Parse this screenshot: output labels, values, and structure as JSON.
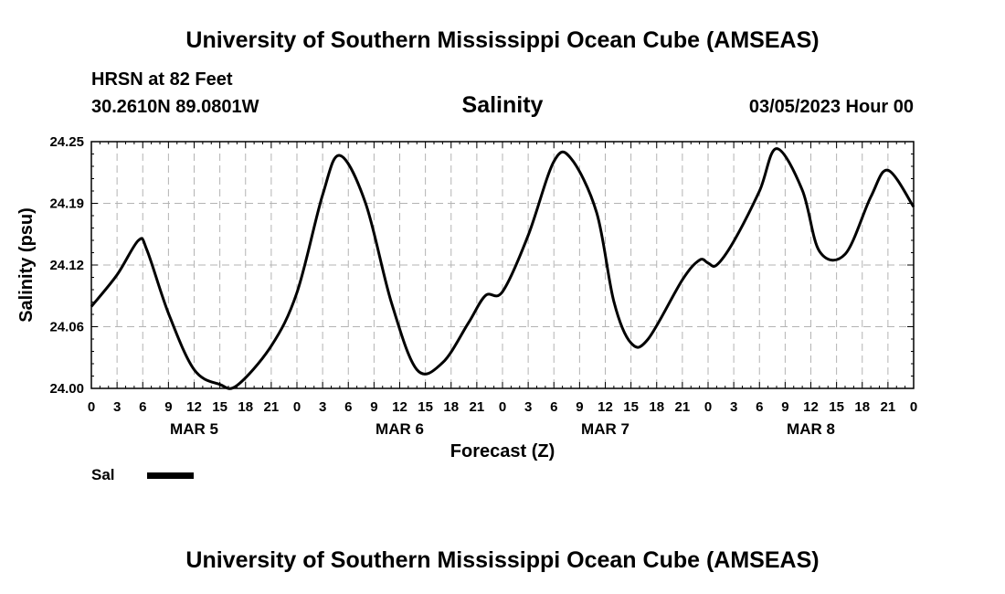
{
  "header": {
    "title": "University of Southern Mississippi Ocean Cube (AMSEAS)",
    "station": "HRSN at 82 Feet",
    "coords": "30.2610N  89.0801W",
    "subtitle": "Salinity",
    "datetime": "03/05/2023 Hour 00"
  },
  "footer": {
    "title": "University of Southern Mississippi Ocean Cube (AMSEAS)"
  },
  "chart_data": {
    "type": "line",
    "title": "Salinity",
    "xlabel": "Forecast (Z)",
    "ylabel": "Salinity (psu)",
    "xlim": [
      0,
      96
    ],
    "ylim": [
      24.0,
      24.25
    ],
    "grid": true,
    "yticks": [
      {
        "value": 24.0,
        "label": "24.00"
      },
      {
        "value": 24.0625,
        "label": "24.06"
      },
      {
        "value": 24.125,
        "label": "24.12"
      },
      {
        "value": 24.1875,
        "label": "24.19"
      },
      {
        "value": 24.25,
        "label": "24.25"
      }
    ],
    "xticks": [
      {
        "hour": 0,
        "label": "0"
      },
      {
        "hour": 3,
        "label": "3"
      },
      {
        "hour": 6,
        "label": "6"
      },
      {
        "hour": 9,
        "label": "9"
      },
      {
        "hour": 12,
        "label": "12"
      },
      {
        "hour": 15,
        "label": "15"
      },
      {
        "hour": 18,
        "label": "18"
      },
      {
        "hour": 21,
        "label": "21"
      },
      {
        "hour": 24,
        "label": "0"
      },
      {
        "hour": 27,
        "label": "3"
      },
      {
        "hour": 30,
        "label": "6"
      },
      {
        "hour": 33,
        "label": "9"
      },
      {
        "hour": 36,
        "label": "12"
      },
      {
        "hour": 39,
        "label": "15"
      },
      {
        "hour": 42,
        "label": "18"
      },
      {
        "hour": 45,
        "label": "21"
      },
      {
        "hour": 48,
        "label": "0"
      },
      {
        "hour": 51,
        "label": "3"
      },
      {
        "hour": 54,
        "label": "6"
      },
      {
        "hour": 57,
        "label": "9"
      },
      {
        "hour": 60,
        "label": "12"
      },
      {
        "hour": 63,
        "label": "15"
      },
      {
        "hour": 66,
        "label": "18"
      },
      {
        "hour": 69,
        "label": "21"
      },
      {
        "hour": 72,
        "label": "0"
      },
      {
        "hour": 75,
        "label": "3"
      },
      {
        "hour": 78,
        "label": "6"
      },
      {
        "hour": 81,
        "label": "9"
      },
      {
        "hour": 84,
        "label": "12"
      },
      {
        "hour": 87,
        "label": "15"
      },
      {
        "hour": 90,
        "label": "18"
      },
      {
        "hour": 93,
        "label": "21"
      },
      {
        "hour": 96,
        "label": "0"
      }
    ],
    "day_labels": [
      {
        "hour": 12,
        "label": "MAR 5"
      },
      {
        "hour": 36,
        "label": "MAR 6"
      },
      {
        "hour": 60,
        "label": "MAR 7"
      },
      {
        "hour": 84,
        "label": "MAR 8"
      }
    ],
    "legend": {
      "label": "Sal",
      "placement": "bottom-left"
    },
    "series": [
      {
        "name": "Sal",
        "x": [
          0,
          3,
          5.5,
          6.5,
          9,
          12,
          15,
          17,
          21,
          24,
          27,
          29,
          32,
          35,
          38,
          41,
          44,
          46,
          48,
          51,
          54,
          56,
          59,
          61,
          63,
          65,
          69,
          71,
          72,
          73,
          75,
          78,
          80,
          83,
          85,
          88,
          91,
          93,
          96
        ],
        "y": [
          24.083,
          24.115,
          24.15,
          24.14,
          24.076,
          24.019,
          24.004,
          24.003,
          24.043,
          24.097,
          24.196,
          24.236,
          24.188,
          24.088,
          24.019,
          24.026,
          24.066,
          24.094,
          24.098,
          24.155,
          24.23,
          24.233,
          24.178,
          24.088,
          24.046,
          24.05,
          24.11,
          24.13,
          24.127,
          24.125,
          24.149,
          24.2,
          24.243,
          24.201,
          24.139,
          24.136,
          24.194,
          24.221,
          24.184
        ]
      }
    ]
  }
}
